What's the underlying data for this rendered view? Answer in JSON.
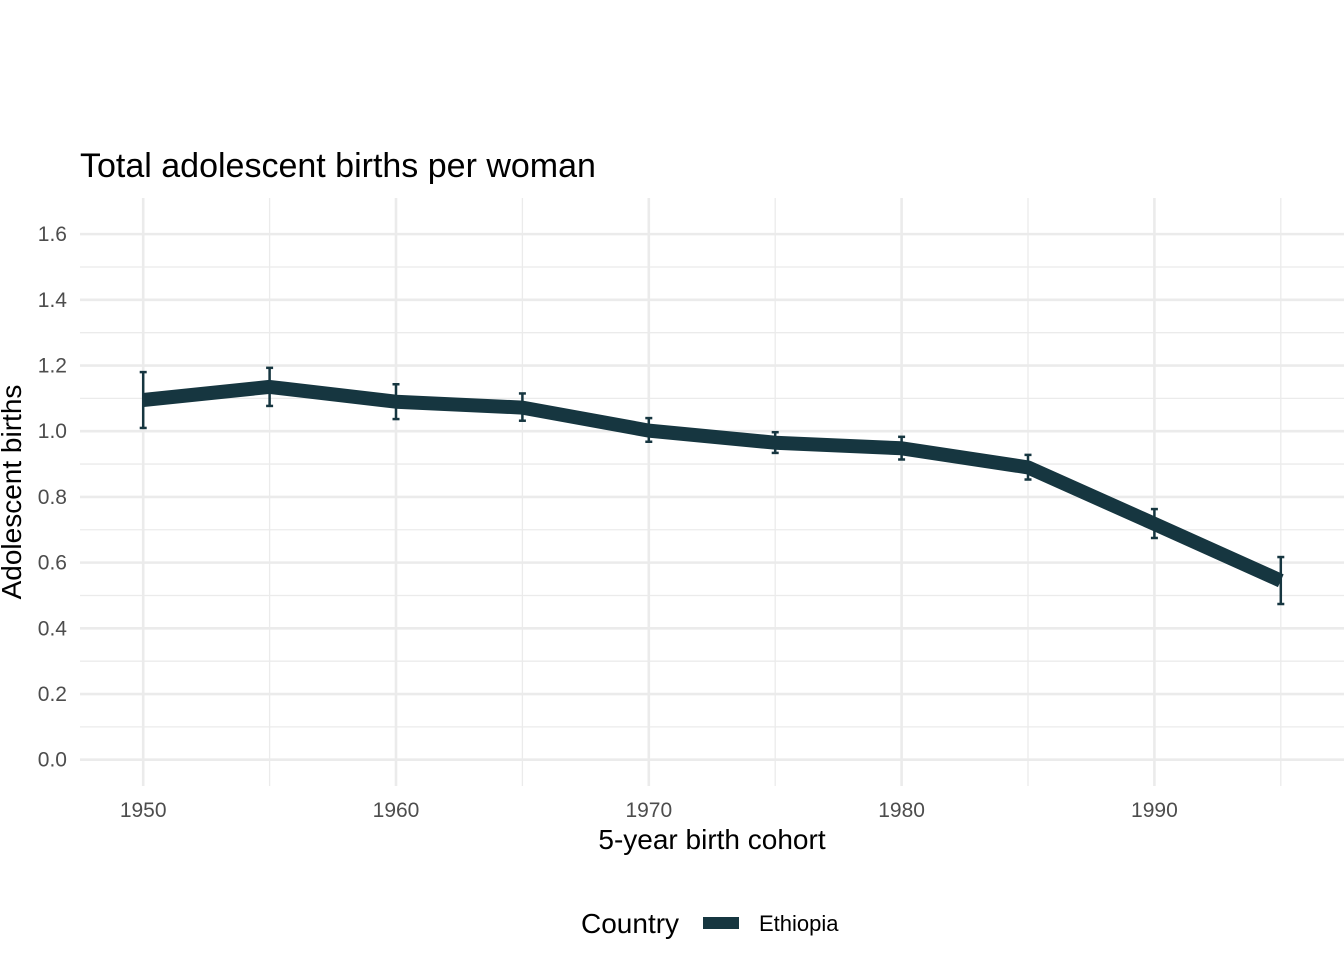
{
  "chart_data": {
    "type": "line",
    "title": "Total adolescent births per woman",
    "xlabel": "5-year birth cohort",
    "ylabel": "Adolescent births",
    "xlim": [
      1947.5,
      1997.5
    ],
    "ylim": [
      -0.08,
      1.71
    ],
    "x_ticks": [
      1950,
      1960,
      1970,
      1980,
      1990
    ],
    "x_tick_labels": [
      "1950",
      "1960",
      "1970",
      "1980",
      "1990"
    ],
    "x_minor_ticks": [
      1955,
      1965,
      1975,
      1985,
      1995
    ],
    "y_ticks": [
      0.0,
      0.2,
      0.4,
      0.6,
      0.8,
      1.0,
      1.2,
      1.4,
      1.6
    ],
    "y_tick_labels": [
      "0.0",
      "0.2",
      "0.4",
      "0.6",
      "0.8",
      "1.0",
      "1.2",
      "1.4",
      "1.6"
    ],
    "y_minor_ticks": [
      0.1,
      0.3,
      0.5,
      0.7,
      0.9,
      1.1,
      1.3,
      1.5
    ],
    "grid": true,
    "legend": {
      "title": "Country",
      "position": "bottom"
    },
    "series": [
      {
        "name": "Ethiopia",
        "color": "#163640",
        "x": [
          1950,
          1955,
          1960,
          1965,
          1970,
          1975,
          1980,
          1985,
          1990,
          1995
        ],
        "values": [
          1.095,
          1.135,
          1.09,
          1.072,
          1.002,
          0.965,
          0.948,
          0.89,
          0.718,
          0.545
        ],
        "lower": [
          1.01,
          1.077,
          1.037,
          1.032,
          0.968,
          0.934,
          0.914,
          0.853,
          0.675,
          0.474
        ],
        "upper": [
          1.18,
          1.193,
          1.143,
          1.115,
          1.04,
          0.997,
          0.983,
          0.928,
          0.763,
          0.617
        ]
      }
    ]
  }
}
